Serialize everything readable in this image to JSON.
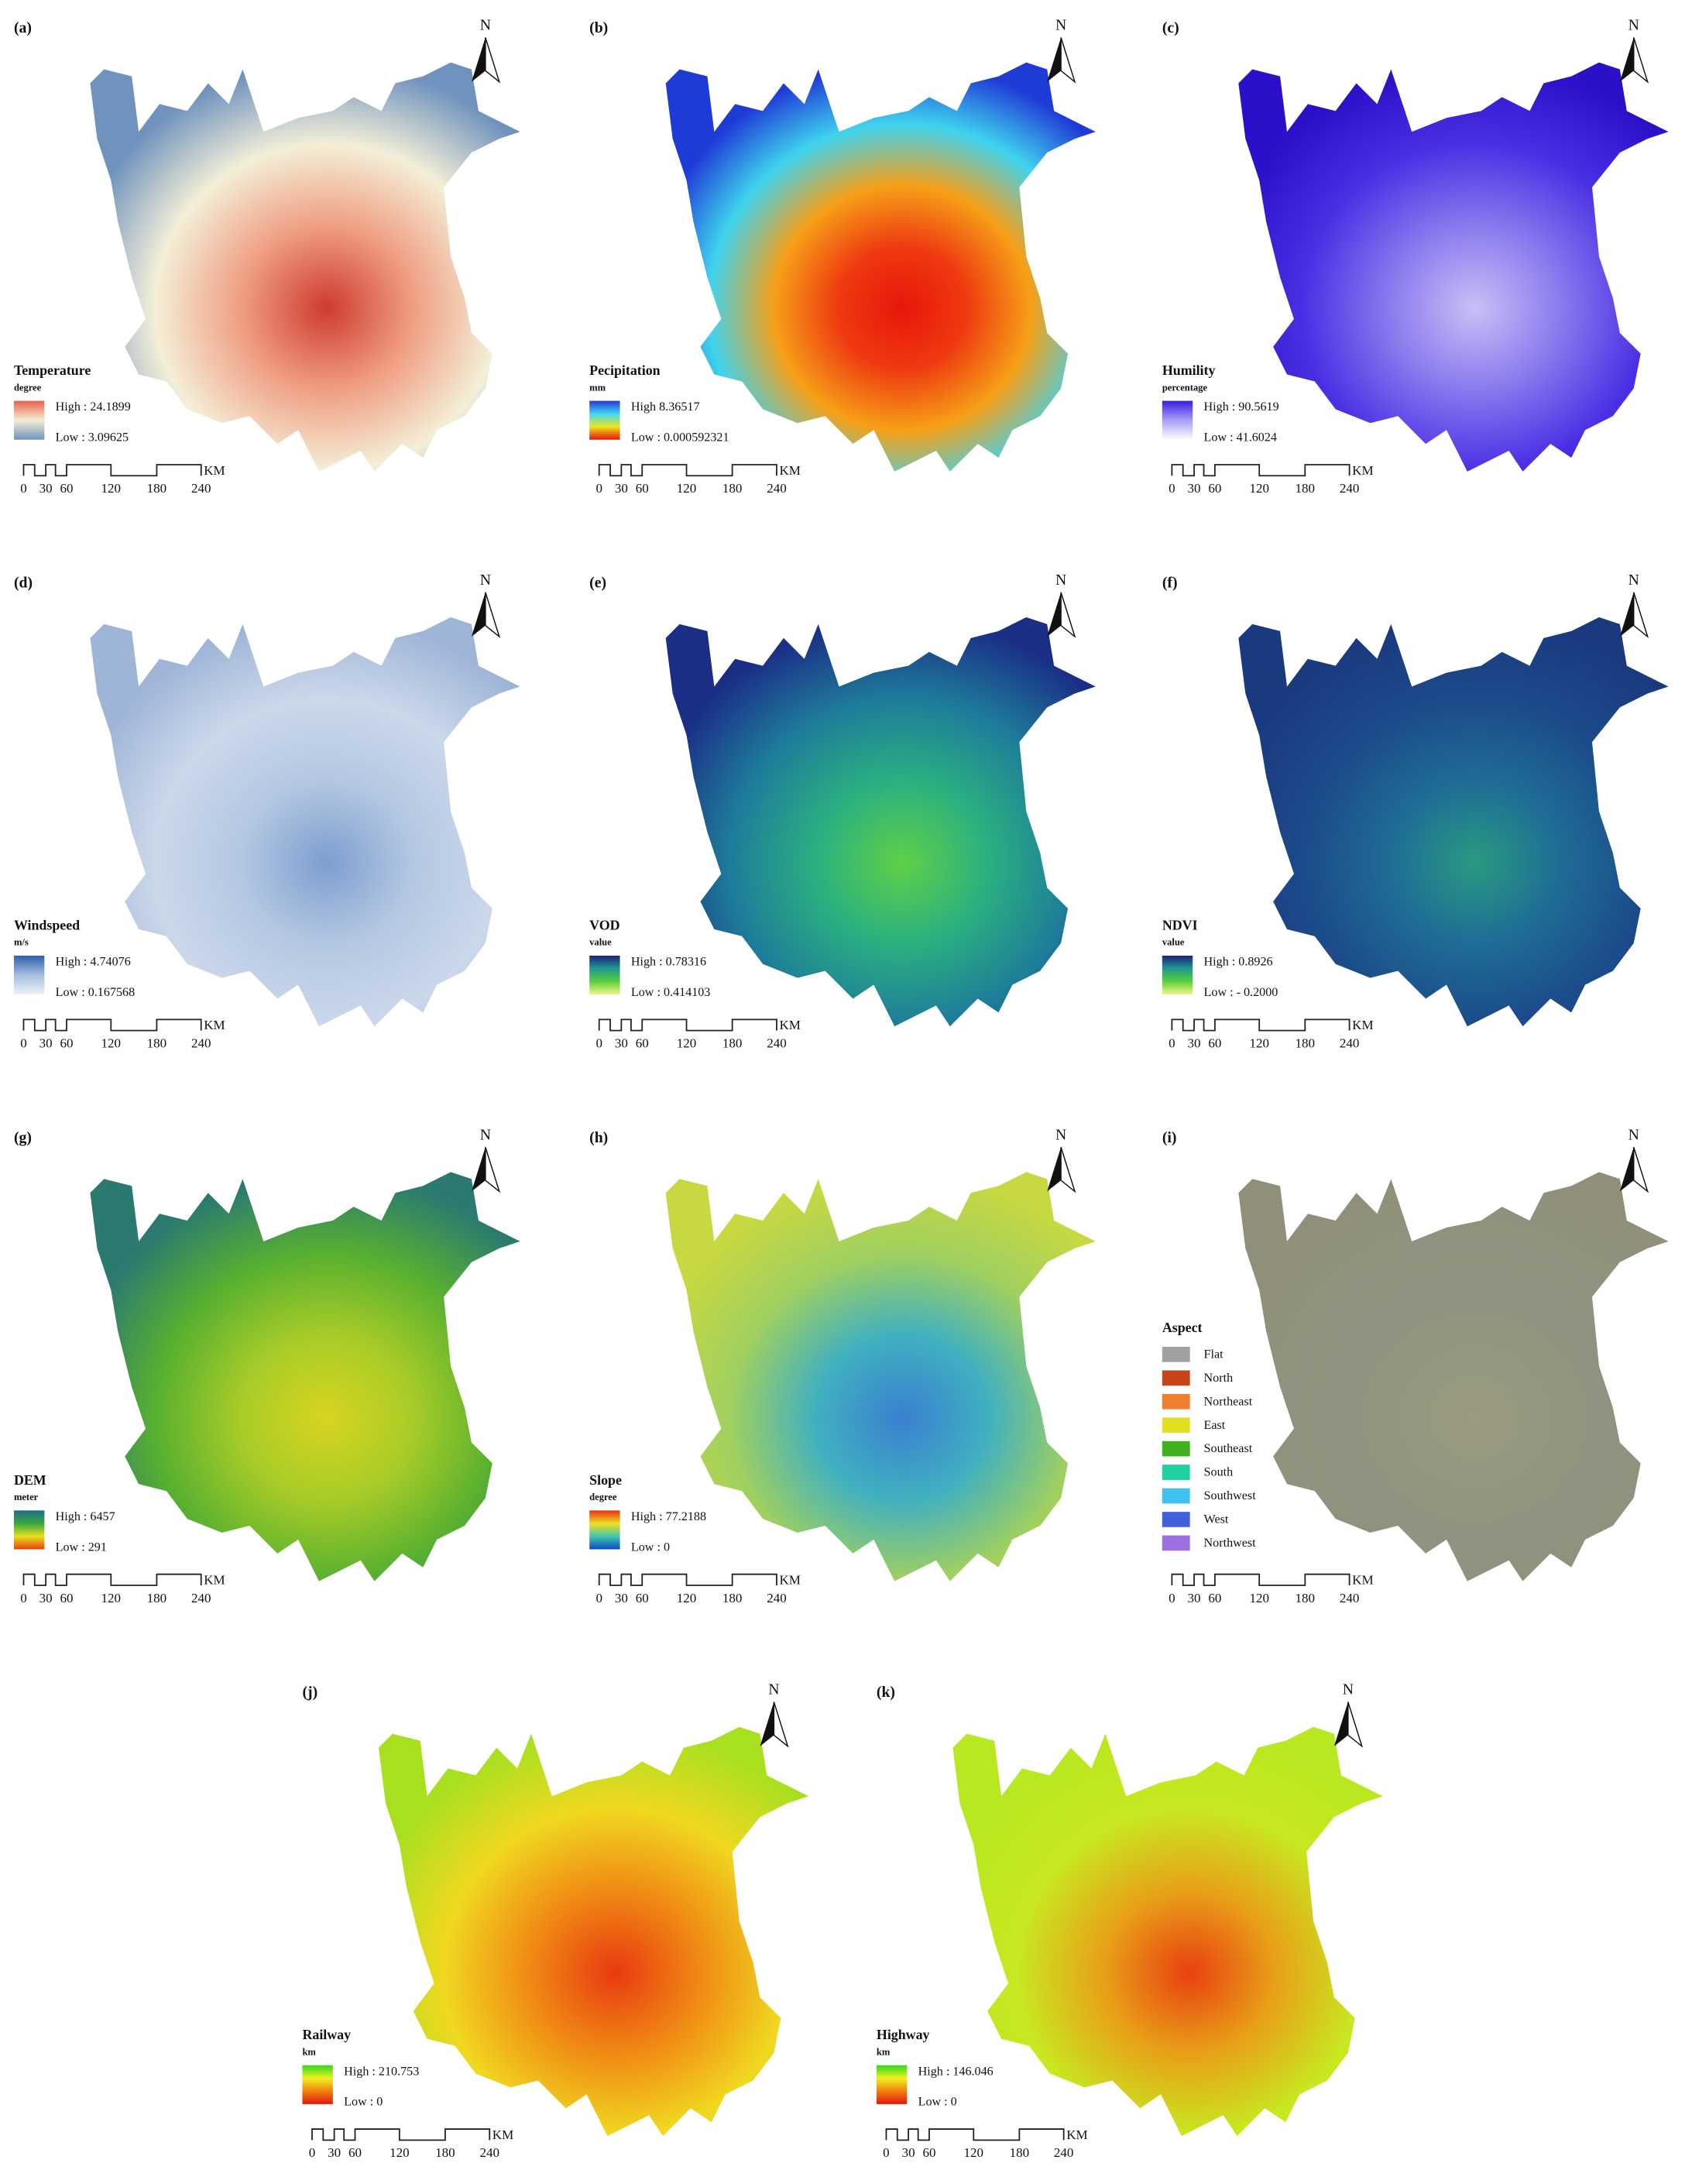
{
  "north": "N",
  "scale_bar": {
    "ticks": [
      "0",
      "30",
      "60",
      "120",
      "180",
      "240"
    ],
    "unit": "KM"
  },
  "panels": [
    {
      "label": "(a)",
      "title": "Temperature",
      "unit": "degree",
      "high": "High : 24.1899",
      "low": "Low : 3.09625",
      "legend_colors": [
        "#e8604a",
        "#f3eed6",
        "#6f93bd"
      ],
      "map_colors": [
        "#cf3a32",
        "#ef9e82",
        "#f4efd8",
        "#6f93bd"
      ]
    },
    {
      "label": "(b)",
      "title": "Pecipitation",
      "unit": "mm",
      "high": "High 8.36517",
      "low": "Low : 0.000592321",
      "legend_colors": [
        "#2636d8",
        "#40d8f0",
        "#f0e41c",
        "#e8140c"
      ],
      "map_colors": [
        "#e8160c",
        "#ee3a10",
        "#f6a018",
        "#3fd3ee",
        "#1f3bd6"
      ]
    },
    {
      "label": "(c)",
      "title": "Humility",
      "unit": "percentage",
      "high": "High : 90.5619",
      "low": "Low : 41.6024",
      "legend_colors": [
        "#3a1ee0",
        "#a89ef4",
        "#ffffff"
      ],
      "map_colors": [
        "#c8c0f6",
        "#8a7aee",
        "#4a30e4",
        "#2a10c8"
      ]
    },
    {
      "label": "(d)",
      "title": "Windspeed",
      "unit": "m/s",
      "high": "High : 4.74076",
      "low": "Low : 0.167568",
      "legend_colors": [
        "#2f5fae",
        "#a6bedd",
        "#eef2f8"
      ],
      "map_colors": [
        "#7d9ed0",
        "#b4c7e2",
        "#cbd8ea",
        "#9fb5d8"
      ]
    },
    {
      "label": "(e)",
      "title": "VOD",
      "unit": "value",
      "high": "High : 0.78316",
      "low": "Low : 0.414103",
      "legend_colors": [
        "#1a237a",
        "#1e9a90",
        "#5cd038",
        "#f4f48a"
      ],
      "map_colors": [
        "#60d048",
        "#2ab080",
        "#1e7c9a",
        "#1a2e86"
      ]
    },
    {
      "label": "(f)",
      "title": "NDVI",
      "unit": "value",
      "high": "High : 0.8926",
      "low": "Low : - 0.2000",
      "legend_colors": [
        "#1a237a",
        "#1e9a90",
        "#5cd038",
        "#f4f48a"
      ],
      "map_colors": [
        "#2a9a80",
        "#1e6c96",
        "#1c4a8a",
        "#1a3a80"
      ]
    },
    {
      "label": "(g)",
      "title": "DEM",
      "unit": "meter",
      "high": "High : 6457",
      "low": "Low : 291",
      "legend_colors": [
        "#1e6c8a",
        "#38a840",
        "#e8e01c",
        "#e84010"
      ],
      "map_colors": [
        "#d8d420",
        "#a8cc28",
        "#58b030",
        "#2a7a70"
      ]
    },
    {
      "label": "(h)",
      "title": "Slope",
      "unit": "degree",
      "high": "High : 77.2188",
      "low": "Low : 0",
      "legend_colors": [
        "#e83010",
        "#f0e020",
        "#40c8b0",
        "#1048c0"
      ],
      "map_colors": [
        "#3a80d0",
        "#40b0c0",
        "#a0d060",
        "#c8d840"
      ]
    },
    {
      "label": "(i)",
      "title": "Aspect",
      "map_colors": [
        "#9a9a80",
        "#8e9480",
        "#90907a"
      ],
      "aspect": [
        {
          "name": "Flat",
          "color": "#a0a0a0"
        },
        {
          "name": "North",
          "color": "#c8441a"
        },
        {
          "name": "Northeast",
          "color": "#f08030"
        },
        {
          "name": "East",
          "color": "#e0e020"
        },
        {
          "name": "Southeast",
          "color": "#40b020"
        },
        {
          "name": "South",
          "color": "#20d0a0"
        },
        {
          "name": "Southwest",
          "color": "#40c0f0"
        },
        {
          "name": "West",
          "color": "#4060e0"
        },
        {
          "name": "Northwest",
          "color": "#9a70e0"
        }
      ]
    },
    {
      "label": "(j)",
      "title": "Railway",
      "unit": "km",
      "high": "High : 210.753",
      "low": "Low : 0",
      "legend_colors": [
        "#30d818",
        "#f0f020",
        "#f08010",
        "#e01810"
      ],
      "map_colors": [
        "#e83a10",
        "#f08a14",
        "#f0d820",
        "#a8e020"
      ]
    },
    {
      "label": "(k)",
      "title": "Highway",
      "unit": "km",
      "high": "High : 146.046",
      "low": "Low : 0",
      "legend_colors": [
        "#30d818",
        "#f0f020",
        "#f08010",
        "#e01810"
      ],
      "map_colors": [
        "#e84010",
        "#e8a018",
        "#c8e820",
        "#b8e820"
      ]
    }
  ]
}
